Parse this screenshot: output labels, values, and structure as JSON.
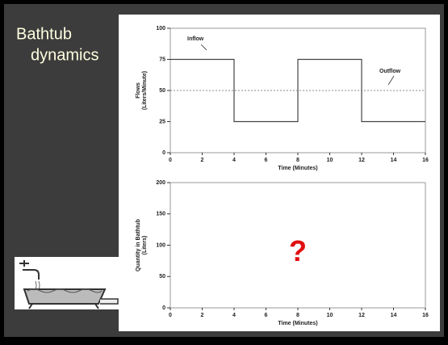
{
  "slide": {
    "title_lines": [
      "Bathtub",
      "dynamics"
    ]
  },
  "chart_data": [
    {
      "type": "line",
      "xlabel": "Time (Minutes)",
      "ylabel": [
        "Flows",
        "(Liters/Minute)"
      ],
      "xlim": [
        0,
        16
      ],
      "xticks": [
        0,
        2,
        4,
        6,
        8,
        10,
        12,
        14,
        16
      ],
      "ylim": [
        0,
        100
      ],
      "yticks": [
        0,
        25,
        50,
        75,
        100
      ],
      "series": [
        {
          "name": "Inflow",
          "color": "#444444",
          "x": [
            0,
            4,
            4,
            8,
            8,
            12,
            12,
            16
          ],
          "values": [
            75,
            75,
            25,
            25,
            75,
            75,
            25,
            25
          ]
        },
        {
          "name": "Outflow",
          "color": "#666666",
          "dashed": true,
          "x": [
            0,
            16
          ],
          "values": [
            50,
            50
          ]
        }
      ]
    },
    {
      "type": "line",
      "xlabel": "Time (Minutes)",
      "ylabel": [
        "Quantity in Bathtub",
        "(Liters)"
      ],
      "xlim": [
        0,
        16
      ],
      "xticks": [
        0,
        2,
        4,
        6,
        8,
        10,
        12,
        14,
        16
      ],
      "ylim": [
        0,
        200
      ],
      "yticks": [
        0,
        50,
        100,
        150,
        200
      ],
      "series": [],
      "annotation": "?"
    }
  ]
}
